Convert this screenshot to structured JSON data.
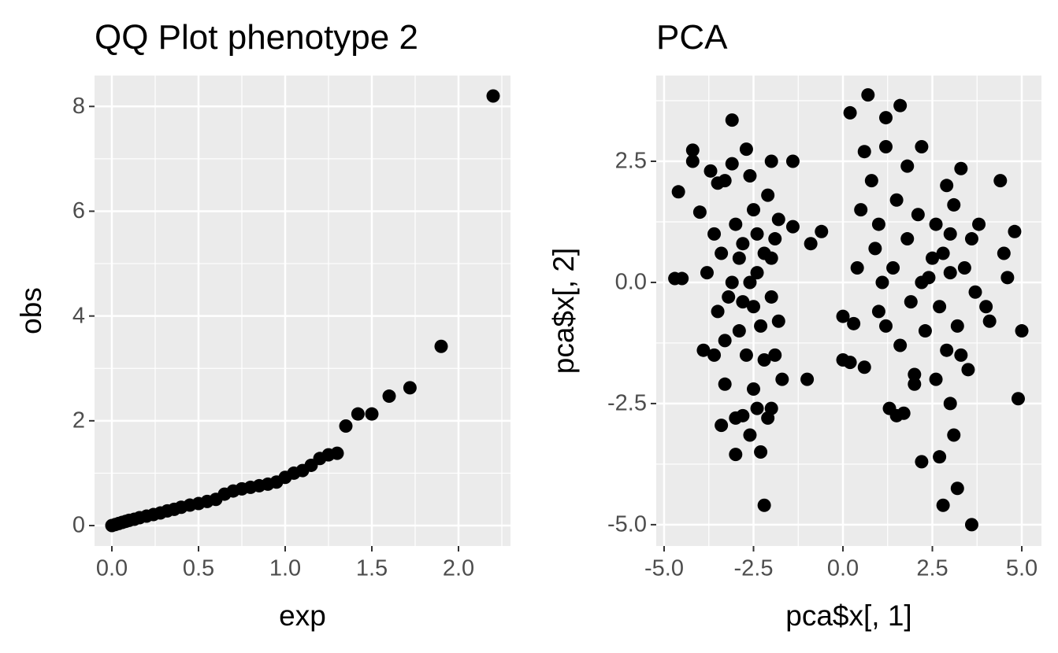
{
  "chart_data": [
    {
      "type": "scatter",
      "title": "QQ Plot phenotype 2",
      "x_label": "exp",
      "y_label": "obs",
      "color": "#000000",
      "xlim": [
        -0.1,
        2.3
      ],
      "ylim": [
        -0.39,
        8.59
      ],
      "xticks": [
        {
          "value": 0,
          "label": "0.0"
        },
        {
          "value": 0.5,
          "label": "0.5"
        },
        {
          "value": 1,
          "label": "1.0"
        },
        {
          "value": 1.5,
          "label": "1.5"
        },
        {
          "value": 2,
          "label": "2.0"
        }
      ],
      "yticks": [
        0,
        2,
        4,
        6,
        8
      ],
      "minor_xticks": [
        0.25,
        0.75,
        1.25,
        1.75,
        2.25
      ],
      "minor_yticks": [
        1,
        3,
        5,
        7
      ],
      "x": [
        0,
        0.02,
        0.04,
        0.06,
        0.08,
        0.1,
        0.13,
        0.16,
        0.2,
        0.24,
        0.28,
        0.32,
        0.36,
        0.4,
        0.45,
        0.5,
        0.55,
        0.6,
        0.65,
        0.7,
        0.75,
        0.8,
        0.85,
        0.9,
        0.95,
        1.0,
        1.05,
        1.1,
        1.15,
        1.2,
        1.25,
        1.3,
        1.35,
        1.42,
        1.5,
        1.6,
        1.72,
        1.9,
        2.2
      ],
      "values": [
        0,
        0.02,
        0.04,
        0.06,
        0.08,
        0.1,
        0.12,
        0.15,
        0.18,
        0.21,
        0.24,
        0.28,
        0.31,
        0.35,
        0.39,
        0.42,
        0.46,
        0.5,
        0.6,
        0.66,
        0.7,
        0.73,
        0.76,
        0.79,
        0.83,
        0.92,
        1.0,
        1.05,
        1.15,
        1.28,
        1.35,
        1.38,
        1.9,
        2.13,
        2.13,
        2.47,
        2.63,
        3.42,
        8.2
      ]
    },
    {
      "type": "scatter",
      "title": "PCA",
      "x_label": "pca$x[, 1]",
      "y_label": "pca$x[, 2]",
      "color": "#000000",
      "xlim": [
        -5.22,
        5.55
      ],
      "ylim": [
        -5.44,
        4.27
      ],
      "xticks": [
        {
          "value": -5,
          "label": "-5.0"
        },
        {
          "value": -2.5,
          "label": "-2.5"
        },
        {
          "value": 0,
          "label": "0.0"
        },
        {
          "value": 2.5,
          "label": "2.5"
        },
        {
          "value": 5,
          "label": "5.0"
        }
      ],
      "yticks": [
        {
          "value": 2.5,
          "label": "2.5"
        },
        {
          "value": 0,
          "label": "0.0"
        },
        {
          "value": -2.5,
          "label": "-2.5"
        },
        {
          "value": -5,
          "label": "-5.0"
        }
      ],
      "minor_xticks": [
        -3.75,
        -1.25,
        1.25,
        3.75
      ],
      "minor_yticks": [
        3.75,
        1.25,
        -1.25,
        -3.75
      ],
      "x": [
        -4.7,
        -4.5,
        -4.6,
        -4.2,
        -4.2,
        -4.0,
        -3.9,
        -3.8,
        -3.7,
        -3.6,
        -3.6,
        -3.5,
        -3.4,
        -3.3,
        -3.3,
        -3.1,
        -3.1,
        -3.0,
        -3.0,
        -2.9,
        -2.8,
        -2.7,
        -2.6,
        -2.5,
        -2.5,
        -2.4,
        -2.3,
        -2.2,
        -2.1,
        -2.0,
        -2.0,
        -1.8,
        -1.7,
        -1.4,
        -1.4,
        -1.0,
        -3.2,
        -3.0,
        -2.9,
        -2.8,
        -2.7,
        -2.6,
        -2.5,
        -2.4,
        -2.3,
        -2.2,
        -2.2,
        -2.1,
        -2.0,
        -1.9,
        -1.9,
        -3.4,
        -3.5,
        -3.3,
        -2.6,
        -2.4,
        -2.8,
        -3.1,
        -2.0,
        -1.8,
        -0.6,
        -0.9,
        0.0,
        0.0,
        0.2,
        0.2,
        0.3,
        0.4,
        0.5,
        0.6,
        0.7,
        0.8,
        0.9,
        1.0,
        1.2,
        1.2,
        1.3,
        1.5,
        1.6,
        1.7,
        1.8,
        2.0,
        2.2,
        2.2,
        2.5,
        2.6,
        2.7,
        2.8,
        2.9,
        3.0,
        3.1,
        3.2,
        3.3,
        3.6,
        3.8,
        4.0,
        4.1,
        4.4,
        4.5,
        4.6,
        4.8,
        4.9,
        5.0,
        1.0,
        1.4,
        1.6,
        1.8,
        1.9,
        2.1,
        2.3,
        2.4,
        2.6,
        2.7,
        2.8,
        2.9,
        3.0,
        3.1,
        3.2,
        3.4,
        3.5,
        3.6,
        3.7,
        1.2,
        1.5,
        2.0,
        3.3,
        2.2,
        3.0,
        0.6,
        1.1
      ],
      "values": [
        0.08,
        0.08,
        1.87,
        2.73,
        2.5,
        1.45,
        -1.4,
        0.2,
        2.3,
        1.0,
        -1.5,
        2.05,
        -2.95,
        2.1,
        -2.1,
        3.35,
        2.45,
        -3.55,
        -2.8,
        0.5,
        -2.75,
        2.75,
        -3.15,
        1.5,
        -0.5,
        0.2,
        -3.5,
        -4.6,
        -2.8,
        2.5,
        0.5,
        -0.8,
        -2.0,
        2.5,
        1.15,
        -2.0,
        -0.3,
        1.2,
        -1.0,
        0.8,
        -1.5,
        0.0,
        -2.2,
        1.0,
        -0.9,
        0.6,
        -1.6,
        1.8,
        -0.3,
        -1.5,
        0.9,
        0.6,
        -0.6,
        -1.2,
        2.2,
        -2.6,
        -0.4,
        0.0,
        -2.6,
        1.3,
        1.05,
        0.8,
        -0.7,
        -1.6,
        -1.65,
        3.5,
        -0.85,
        0.3,
        1.5,
        -1.75,
        3.87,
        2.1,
        0.7,
        -0.6,
        2.8,
        3.4,
        -2.6,
        -2.75,
        3.65,
        -2.7,
        2.4,
        -2.1,
        2.8,
        -3.7,
        0.5,
        -2.0,
        -3.6,
        -4.6,
        2.0,
        -2.5,
        -3.15,
        -4.25,
        2.35,
        -5.0,
        1.2,
        -0.5,
        -0.8,
        2.1,
        0.6,
        0.1,
        1.05,
        -2.4,
        -1.0,
        1.2,
        0.3,
        -1.3,
        0.9,
        -0.4,
        1.4,
        -1.0,
        0.1,
        1.2,
        -0.5,
        0.6,
        -1.4,
        0.2,
        1.6,
        -0.9,
        0.3,
        -1.8,
        0.9,
        -0.2,
        -0.9,
        1.7,
        -1.9,
        -1.5,
        0.0,
        1.0,
        2.7,
        0.0
      ]
    }
  ]
}
